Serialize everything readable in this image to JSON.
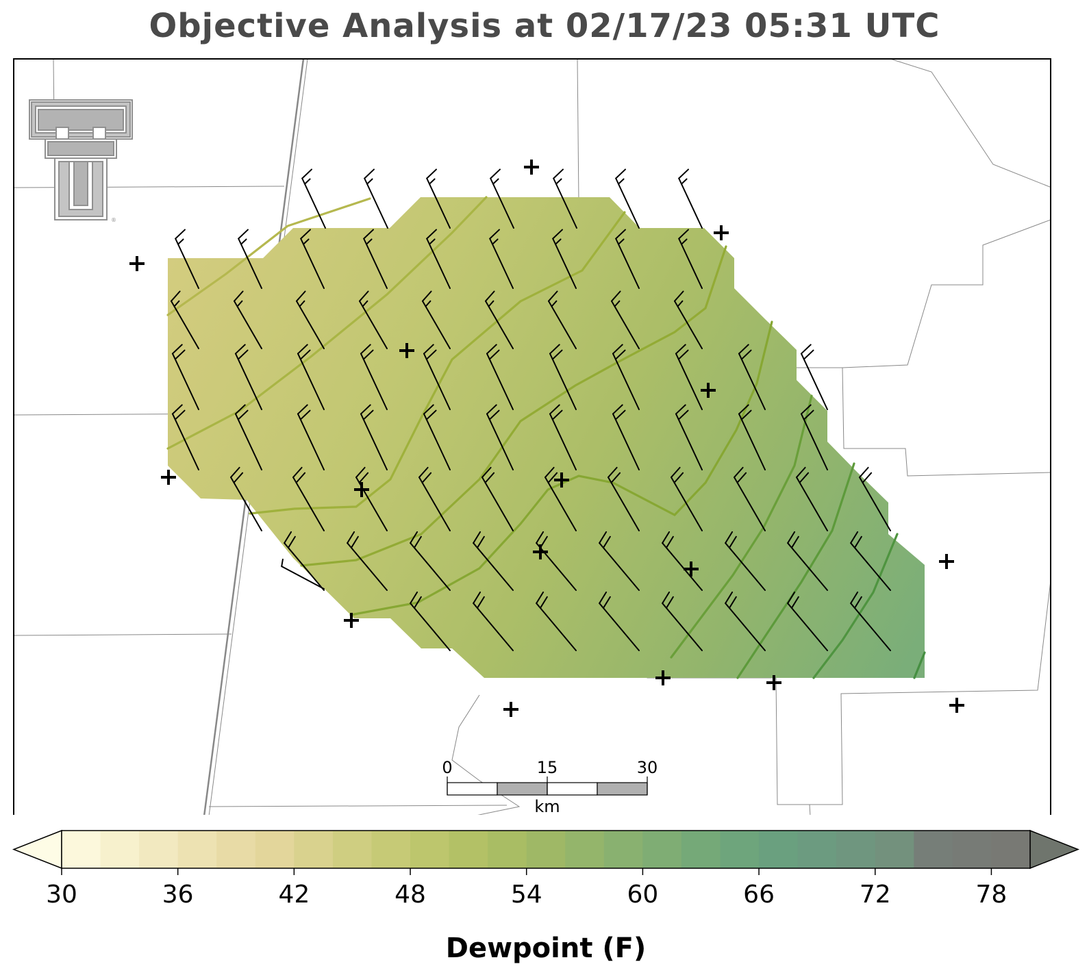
{
  "title": "Objective Analysis at 02/17/23 05:31 UTC",
  "logo": {
    "name": "texas-tech-double-t-logo",
    "color": "#a9a9a9"
  },
  "scalebar": {
    "ticks": [
      "0",
      "15",
      "30"
    ],
    "unit": "km"
  },
  "colorbar": {
    "label": "Dewpoint (F)",
    "min": 30,
    "max": 80,
    "step": 2,
    "ticks": [
      "30",
      "36",
      "42",
      "48",
      "54",
      "60",
      "66",
      "72",
      "78"
    ],
    "colors": [
      "#fcf8dc",
      "#f7f1cd",
      "#f2e9c0",
      "#ede2b2",
      "#e8dba6",
      "#e3d69b",
      "#d9d28e",
      "#cfce81",
      "#c6ca76",
      "#bdc66d",
      "#b3c166",
      "#a9bd64",
      "#9fb866",
      "#94b56b",
      "#89b170",
      "#7fad74",
      "#75a978",
      "#6ea57c",
      "#6aa07f",
      "#6c9b80",
      "#6f967f",
      "#73917d",
      "#767e78",
      "#777b76",
      "#787974"
    ],
    "under_color": "#fefce6",
    "over_color": "#6f756d"
  },
  "field": {
    "contour_levels": [
      44,
      46,
      48,
      50,
      52,
      54,
      56,
      58,
      60,
      62
    ]
  },
  "station_icon": "plus-icon",
  "barb_icon": "wind-barb-icon"
}
